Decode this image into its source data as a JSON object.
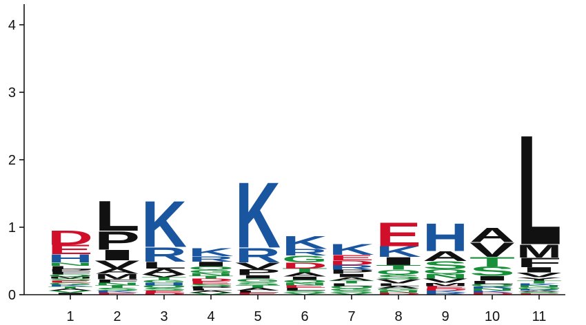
{
  "chart_data": {
    "type": "sequence-logo",
    "title": "",
    "xlabel": "",
    "ylabel": "",
    "ylim": [
      0,
      4.3
    ],
    "y_ticks": [
      "0",
      "1",
      "2",
      "3",
      "4"
    ],
    "categories": [
      "1",
      "2",
      "3",
      "4",
      "5",
      "6",
      "7",
      "8",
      "9",
      "10",
      "11"
    ],
    "residue_colors": {
      "red": "#d0102a",
      "blue": "#1a55a0",
      "green": "#18903a",
      "black": "#111111"
    },
    "positions": [
      {
        "position": "1",
        "total": 0.92,
        "letters": [
          {
            "ch": "I",
            "color": "black",
            "h": 0.03
          },
          {
            "ch": "V",
            "color": "green",
            "h": 0.03
          },
          {
            "ch": "A",
            "color": "black",
            "h": 0.03
          },
          {
            "ch": "T",
            "color": "green",
            "h": 0.03
          },
          {
            "ch": "K",
            "color": "blue",
            "h": 0.03
          },
          {
            "ch": "G",
            "color": "green",
            "h": 0.03
          },
          {
            "ch": "E",
            "color": "red",
            "h": 0.03
          },
          {
            "ch": "S",
            "color": "green",
            "h": 0.03
          },
          {
            "ch": "M",
            "color": "black",
            "h": 0.03
          },
          {
            "ch": "Q",
            "color": "green",
            "h": 0.03
          },
          {
            "ch": "F",
            "color": "black",
            "h": 0.04
          },
          {
            "ch": "P",
            "color": "black",
            "h": 0.04
          },
          {
            "ch": "L",
            "color": "black",
            "h": 0.05
          },
          {
            "ch": "N",
            "color": "green",
            "h": 0.05
          },
          {
            "ch": "H",
            "color": "blue",
            "h": 0.12
          },
          {
            "ch": "E",
            "color": "red",
            "h": 0.14
          },
          {
            "ch": "D",
            "color": "red",
            "h": 0.22
          }
        ]
      },
      {
        "position": "2",
        "total": 1.56,
        "letters": [
          {
            "ch": "E",
            "color": "red",
            "h": 0.03
          },
          {
            "ch": "K",
            "color": "blue",
            "h": 0.03
          },
          {
            "ch": "S",
            "color": "green",
            "h": 0.04
          },
          {
            "ch": "T",
            "color": "green",
            "h": 0.04
          },
          {
            "ch": "N",
            "color": "green",
            "h": 0.04
          },
          {
            "ch": "F",
            "color": "black",
            "h": 0.05
          },
          {
            "ch": "M",
            "color": "black",
            "h": 0.08
          },
          {
            "ch": "A",
            "color": "black",
            "h": 0.08
          },
          {
            "ch": "V",
            "color": "black",
            "h": 0.12
          },
          {
            "ch": "I",
            "color": "black",
            "h": 0.16
          },
          {
            "ch": "P",
            "color": "black",
            "h": 0.28
          },
          {
            "ch": "L",
            "color": "black",
            "h": 0.46
          }
        ]
      },
      {
        "position": "3",
        "total": 1.41,
        "letters": [
          {
            "ch": "D",
            "color": "red",
            "h": 0.03
          },
          {
            "ch": "E",
            "color": "red",
            "h": 0.03
          },
          {
            "ch": "S",
            "color": "green",
            "h": 0.04
          },
          {
            "ch": "Q",
            "color": "green",
            "h": 0.04
          },
          {
            "ch": "H",
            "color": "blue",
            "h": 0.04
          },
          {
            "ch": "G",
            "color": "green",
            "h": 0.04
          },
          {
            "ch": "T",
            "color": "green",
            "h": 0.04
          },
          {
            "ch": "V",
            "color": "black",
            "h": 0.04
          },
          {
            "ch": "A",
            "color": "black",
            "h": 0.09
          },
          {
            "ch": "L",
            "color": "black",
            "h": 0.1
          },
          {
            "ch": "R",
            "color": "blue",
            "h": 0.22
          },
          {
            "ch": "K",
            "color": "blue",
            "h": 0.7
          }
        ]
      },
      {
        "position": "4",
        "total": 0.73,
        "letters": [
          {
            "ch": "V",
            "color": "green",
            "h": 0.03
          },
          {
            "ch": "A",
            "color": "black",
            "h": 0.03
          },
          {
            "ch": "L",
            "color": "black",
            "h": 0.03
          },
          {
            "ch": "P",
            "color": "black",
            "h": 0.03
          },
          {
            "ch": "S",
            "color": "green",
            "h": 0.04
          },
          {
            "ch": "E",
            "color": "red",
            "h": 0.04
          },
          {
            "ch": "D",
            "color": "red",
            "h": 0.04
          },
          {
            "ch": "T",
            "color": "green",
            "h": 0.04
          },
          {
            "ch": "N",
            "color": "green",
            "h": 0.04
          },
          {
            "ch": "G",
            "color": "green",
            "h": 0.05
          },
          {
            "ch": "Q",
            "color": "green",
            "h": 0.05
          },
          {
            "ch": "I",
            "color": "black",
            "h": 0.07
          },
          {
            "ch": "R",
            "color": "blue",
            "h": 0.08
          },
          {
            "ch": "K",
            "color": "blue",
            "h": 0.12
          }
        ]
      },
      {
        "position": "5",
        "total": 1.82,
        "letters": [
          {
            "ch": "E",
            "color": "red",
            "h": 0.03
          },
          {
            "ch": "L",
            "color": "black",
            "h": 0.03
          },
          {
            "ch": "A",
            "color": "black",
            "h": 0.04
          },
          {
            "ch": "T",
            "color": "green",
            "h": 0.04
          },
          {
            "ch": "S",
            "color": "green",
            "h": 0.05
          },
          {
            "ch": "G",
            "color": "green",
            "h": 0.05
          },
          {
            "ch": "I",
            "color": "black",
            "h": 0.05
          },
          {
            "ch": "P",
            "color": "black",
            "h": 0.09
          },
          {
            "ch": "V",
            "color": "black",
            "h": 0.1
          },
          {
            "ch": "R",
            "color": "blue",
            "h": 0.22
          },
          {
            "ch": "K",
            "color": "blue",
            "h": 1.0
          }
        ]
      },
      {
        "position": "6",
        "total": 0.96,
        "letters": [
          {
            "ch": "V",
            "color": "green",
            "h": 0.03
          },
          {
            "ch": "S",
            "color": "green",
            "h": 0.03
          },
          {
            "ch": "L",
            "color": "black",
            "h": 0.04
          },
          {
            "ch": "E",
            "color": "red",
            "h": 0.04
          },
          {
            "ch": "N",
            "color": "green",
            "h": 0.04
          },
          {
            "ch": "Q",
            "color": "green",
            "h": 0.04
          },
          {
            "ch": "I",
            "color": "black",
            "h": 0.05
          },
          {
            "ch": "A",
            "color": "black",
            "h": 0.06
          },
          {
            "ch": "T",
            "color": "green",
            "h": 0.06
          },
          {
            "ch": "D",
            "color": "red",
            "h": 0.09
          },
          {
            "ch": "G",
            "color": "green",
            "h": 0.1
          },
          {
            "ch": "R",
            "color": "blue",
            "h": 0.1
          },
          {
            "ch": "K",
            "color": "blue",
            "h": 0.2
          }
        ]
      },
      {
        "position": "7",
        "total": 0.84,
        "letters": [
          {
            "ch": "V",
            "color": "green",
            "h": 0.03
          },
          {
            "ch": "S",
            "color": "green",
            "h": 0.03
          },
          {
            "ch": "G",
            "color": "green",
            "h": 0.03
          },
          {
            "ch": "Q",
            "color": "green",
            "h": 0.04
          },
          {
            "ch": "L",
            "color": "black",
            "h": 0.04
          },
          {
            "ch": "T",
            "color": "green",
            "h": 0.04
          },
          {
            "ch": "A",
            "color": "black",
            "h": 0.05
          },
          {
            "ch": "I",
            "color": "black",
            "h": 0.05
          },
          {
            "ch": "P",
            "color": "black",
            "h": 0.06
          },
          {
            "ch": "R",
            "color": "blue",
            "h": 0.07
          },
          {
            "ch": "D",
            "color": "red",
            "h": 0.07
          },
          {
            "ch": "E",
            "color": "red",
            "h": 0.08
          },
          {
            "ch": "K",
            "color": "blue",
            "h": 0.16
          }
        ]
      },
      {
        "position": "8",
        "total": 1.21,
        "letters": [
          {
            "ch": "D",
            "color": "red",
            "h": 0.03
          },
          {
            "ch": "N",
            "color": "green",
            "h": 0.03
          },
          {
            "ch": "G",
            "color": "green",
            "h": 0.03
          },
          {
            "ch": "A",
            "color": "black",
            "h": 0.04
          },
          {
            "ch": "L",
            "color": "black",
            "h": 0.04
          },
          {
            "ch": "V",
            "color": "black",
            "h": 0.06
          },
          {
            "ch": "S",
            "color": "green",
            "h": 0.07
          },
          {
            "ch": "Q",
            "color": "green",
            "h": 0.07
          },
          {
            "ch": "T",
            "color": "green",
            "h": 0.07
          },
          {
            "ch": "I",
            "color": "black",
            "h": 0.12
          },
          {
            "ch": "K",
            "color": "blue",
            "h": 0.16
          },
          {
            "ch": "E",
            "color": "red",
            "h": 0.36
          }
        ]
      },
      {
        "position": "9",
        "total": 1.17,
        "letters": [
          {
            "ch": "R",
            "color": "blue",
            "h": 0.03
          },
          {
            "ch": "K",
            "color": "blue",
            "h": 0.03
          },
          {
            "ch": "D",
            "color": "red",
            "h": 0.03
          },
          {
            "ch": "E",
            "color": "red",
            "h": 0.04
          },
          {
            "ch": "M",
            "color": "black",
            "h": 0.05
          },
          {
            "ch": "V",
            "color": "black",
            "h": 0.06
          },
          {
            "ch": "N",
            "color": "green",
            "h": 0.07
          },
          {
            "ch": "Q",
            "color": "green",
            "h": 0.07
          },
          {
            "ch": "S",
            "color": "green",
            "h": 0.12
          },
          {
            "ch": "A",
            "color": "black",
            "h": 0.15
          },
          {
            "ch": "H",
            "color": "blue",
            "h": 0.42
          }
        ]
      },
      {
        "position": "10",
        "total": 1.14,
        "letters": [
          {
            "ch": "D",
            "color": "red",
            "h": 0.03
          },
          {
            "ch": "K",
            "color": "blue",
            "h": 0.03
          },
          {
            "ch": "N",
            "color": "green",
            "h": 0.03
          },
          {
            "ch": "R",
            "color": "blue",
            "h": 0.03
          },
          {
            "ch": "Q",
            "color": "green",
            "h": 0.04
          },
          {
            "ch": "L",
            "color": "black",
            "h": 0.05
          },
          {
            "ch": "I",
            "color": "black",
            "h": 0.07
          },
          {
            "ch": "S",
            "color": "green",
            "h": 0.14
          },
          {
            "ch": "T",
            "color": "green",
            "h": 0.14
          },
          {
            "ch": "V",
            "color": "black",
            "h": 0.22
          },
          {
            "ch": "A",
            "color": "black",
            "h": 0.22
          }
        ]
      },
      {
        "position": "11",
        "total": 2.45,
        "letters": [
          {
            "ch": "E",
            "color": "red",
            "h": 0.02
          },
          {
            "ch": "S",
            "color": "green",
            "h": 0.02
          },
          {
            "ch": "A",
            "color": "black",
            "h": 0.02
          },
          {
            "ch": "R",
            "color": "blue",
            "h": 0.02
          },
          {
            "ch": "Q",
            "color": "green",
            "h": 0.03
          },
          {
            "ch": "N",
            "color": "green",
            "h": 0.03
          },
          {
            "ch": "K",
            "color": "blue",
            "h": 0.03
          },
          {
            "ch": "T",
            "color": "green",
            "h": 0.04
          },
          {
            "ch": "Y",
            "color": "black",
            "h": 0.05
          },
          {
            "ch": "V",
            "color": "black",
            "h": 0.07
          },
          {
            "ch": "I",
            "color": "black",
            "h": 0.08
          },
          {
            "ch": "F",
            "color": "black",
            "h": 0.14
          },
          {
            "ch": "M",
            "color": "black",
            "h": 0.2
          },
          {
            "ch": "L",
            "color": "black",
            "h": 1.67
          }
        ]
      }
    ]
  }
}
